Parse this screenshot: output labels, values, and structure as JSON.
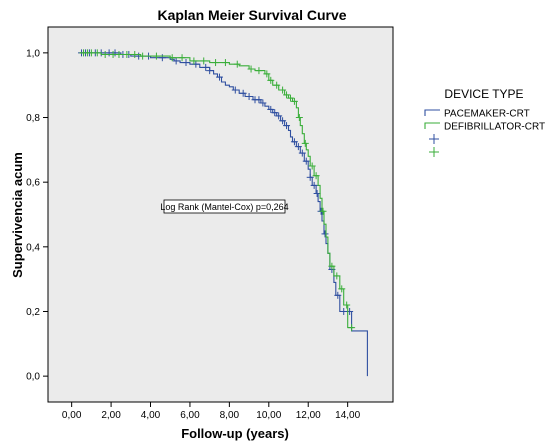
{
  "chart_data": {
    "type": "line",
    "title": "Kaplan Meier Survival Curve",
    "xlabel": "Follow-up (years)",
    "ylabel": "Supervivencia acum",
    "xlim": [
      -1.2,
      16.3
    ],
    "ylim": [
      -0.08,
      1.08
    ],
    "x_ticks": [
      "0,00",
      "2,00",
      "4,00",
      "6,00",
      "8,00",
      "10,00",
      "12,00",
      "14,00"
    ],
    "x_tick_values": [
      0,
      2,
      4,
      6,
      8,
      10,
      12,
      14
    ],
    "y_ticks": [
      "0,0",
      "0,2",
      "0,4",
      "0,6",
      "0,8",
      "1,0"
    ],
    "y_tick_values": [
      0,
      0.2,
      0.4,
      0.6,
      0.8,
      1.0
    ],
    "grid": false,
    "background_color": "#ebebeb",
    "legend": {
      "title": "DEVICE TYPE",
      "placement": "right",
      "entries": [
        {
          "label": "PACEMAKER-CRT",
          "symbol": "step-line",
          "color": "#2f4fa0"
        },
        {
          "label": "DEFIBRILLATOR-CRT",
          "symbol": "step-line",
          "color": "#3aae3a"
        },
        {
          "label": "",
          "symbol": "plus",
          "color": "#2f4fa0"
        },
        {
          "label": "",
          "symbol": "plus",
          "color": "#3aae3a"
        }
      ]
    },
    "annotation": {
      "text": "Log Rank (Mantel-Cox) p=0,264"
    },
    "series": [
      {
        "name": "PACEMAKER-CRT",
        "color": "#2f4fa0",
        "steps": [
          [
            0.4,
            1.0
          ],
          [
            2.5,
            0.995
          ],
          [
            3.0,
            0.99
          ],
          [
            4.0,
            0.985
          ],
          [
            5.0,
            0.98
          ],
          [
            5.2,
            0.975
          ],
          [
            5.5,
            0.97
          ],
          [
            6.0,
            0.965
          ],
          [
            6.5,
            0.955
          ],
          [
            7.0,
            0.945
          ],
          [
            7.2,
            0.935
          ],
          [
            7.4,
            0.925
          ],
          [
            7.6,
            0.91
          ],
          [
            7.8,
            0.9
          ],
          [
            8.0,
            0.895
          ],
          [
            8.2,
            0.885
          ],
          [
            8.5,
            0.875
          ],
          [
            8.8,
            0.865
          ],
          [
            9.2,
            0.855
          ],
          [
            9.6,
            0.845
          ],
          [
            9.8,
            0.835
          ],
          [
            10.0,
            0.825
          ],
          [
            10.2,
            0.815
          ],
          [
            10.4,
            0.805
          ],
          [
            10.6,
            0.79
          ],
          [
            10.8,
            0.775
          ],
          [
            11.0,
            0.76
          ],
          [
            11.1,
            0.74
          ],
          [
            11.2,
            0.725
          ],
          [
            11.4,
            0.71
          ],
          [
            11.6,
            0.69
          ],
          [
            11.8,
            0.665
          ],
          [
            12.0,
            0.64
          ],
          [
            12.1,
            0.615
          ],
          [
            12.2,
            0.59
          ],
          [
            12.4,
            0.565
          ],
          [
            12.5,
            0.54
          ],
          [
            12.6,
            0.51
          ],
          [
            12.7,
            0.48
          ],
          [
            12.8,
            0.44
          ],
          [
            12.9,
            0.41
          ],
          [
            13.0,
            0.38
          ],
          [
            13.1,
            0.33
          ],
          [
            13.3,
            0.29
          ],
          [
            13.4,
            0.25
          ],
          [
            13.6,
            0.2
          ],
          [
            14.2,
            0.14
          ],
          [
            15.0,
            0.07
          ]
        ],
        "end_x": 15.0,
        "end_y": 0.0,
        "censor_x": [
          0.5,
          0.7,
          0.9,
          1.2,
          1.5,
          1.9,
          2.2,
          2.6,
          2.9,
          3.4,
          3.9,
          4.6,
          5.3,
          5.8,
          6.3,
          6.8,
          7.0,
          7.5,
          8.3,
          8.7,
          9.0,
          9.3,
          9.5,
          9.7,
          10.1,
          10.3,
          10.5,
          10.7,
          10.9,
          11.3,
          11.5,
          11.7,
          11.9,
          12.1,
          12.3,
          12.45,
          12.65,
          12.85,
          13.2,
          13.5,
          13.8,
          14.1
        ]
      },
      {
        "name": "DEFIBRILLATOR-CRT",
        "color": "#3aae3a",
        "steps": [
          [
            0.4,
            1.0
          ],
          [
            1.5,
            0.995
          ],
          [
            3.5,
            0.99
          ],
          [
            5.0,
            0.985
          ],
          [
            6.0,
            0.975
          ],
          [
            7.0,
            0.97
          ],
          [
            8.0,
            0.965
          ],
          [
            8.5,
            0.96
          ],
          [
            9.0,
            0.95
          ],
          [
            9.3,
            0.945
          ],
          [
            9.8,
            0.935
          ],
          [
            10.0,
            0.915
          ],
          [
            10.2,
            0.9
          ],
          [
            10.5,
            0.885
          ],
          [
            10.8,
            0.87
          ],
          [
            11.0,
            0.86
          ],
          [
            11.2,
            0.85
          ],
          [
            11.4,
            0.83
          ],
          [
            11.5,
            0.8
          ],
          [
            11.6,
            0.775
          ],
          [
            11.7,
            0.75
          ],
          [
            11.8,
            0.72
          ],
          [
            11.9,
            0.7
          ],
          [
            12.0,
            0.68
          ],
          [
            12.1,
            0.65
          ],
          [
            12.3,
            0.62
          ],
          [
            12.5,
            0.59
          ],
          [
            12.6,
            0.55
          ],
          [
            12.7,
            0.51
          ],
          [
            12.8,
            0.47
          ],
          [
            12.9,
            0.43
          ],
          [
            13.0,
            0.38
          ],
          [
            13.1,
            0.34
          ],
          [
            13.3,
            0.31
          ],
          [
            13.6,
            0.27
          ],
          [
            13.8,
            0.22
          ],
          [
            14.0,
            0.15
          ]
        ],
        "end_x": 14.3,
        "end_y": 0.15,
        "censor_x": [
          0.6,
          0.8,
          1.0,
          1.3,
          1.7,
          2.1,
          2.4,
          2.8,
          3.2,
          3.6,
          4.3,
          5.1,
          5.6,
          6.2,
          6.7,
          7.3,
          7.8,
          8.4,
          9.1,
          9.5,
          9.9,
          10.1,
          10.4,
          10.7,
          10.9,
          11.1,
          11.3,
          11.55,
          11.85,
          12.2,
          12.4,
          12.75,
          13.2,
          13.45,
          13.7,
          13.95,
          14.2
        ]
      }
    ]
  }
}
